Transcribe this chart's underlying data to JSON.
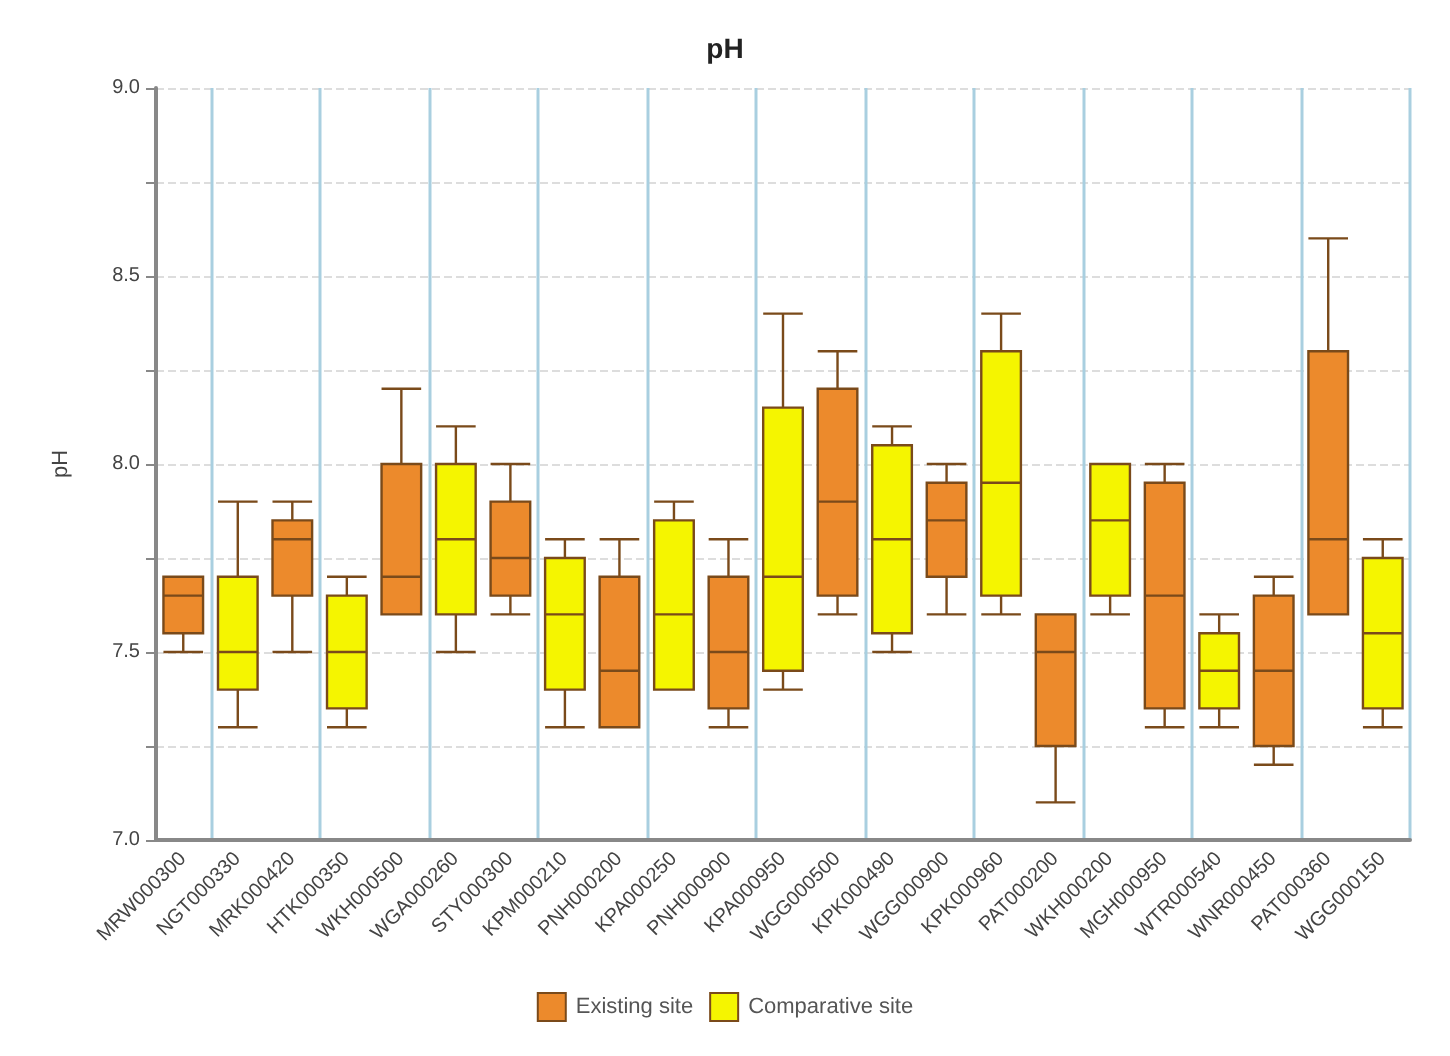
{
  "chart_data": {
    "type": "box",
    "title": "pH",
    "ylabel": "pH",
    "categories": [
      "MRW000300",
      "NGT000330",
      "MRK000420",
      "HTK000350",
      "WKH000500",
      "WGA000260",
      "STY000300",
      "KPM000210",
      "PNH000200",
      "KPA000250",
      "PNH000900",
      "KPA000950",
      "WGG000500",
      "KPK000490",
      "WGG000900",
      "KPK000960",
      "PAT000200",
      "WKH000200",
      "MGH000950",
      "WTR000540",
      "WNR000450",
      "PAT000360",
      "WGG000150"
    ],
    "series": [
      {
        "name": "Existing site",
        "color": "#ec8a2c",
        "boxes": [
          {
            "low": 7.5,
            "q1": 7.55,
            "median": 7.65,
            "q3": 7.7,
            "high": 7.7
          },
          null,
          {
            "low": 7.5,
            "q1": 7.65,
            "median": 7.8,
            "q3": 7.85,
            "high": 7.9
          },
          null,
          {
            "low": 7.6,
            "q1": 7.6,
            "median": 7.7,
            "q3": 8.0,
            "high": 8.2
          },
          null,
          {
            "low": 7.6,
            "q1": 7.65,
            "median": 7.75,
            "q3": 7.9,
            "high": 8.0
          },
          null,
          {
            "low": 7.3,
            "q1": 7.3,
            "median": 7.45,
            "q3": 7.7,
            "high": 7.8
          },
          null,
          {
            "low": 7.3,
            "q1": 7.35,
            "median": 7.5,
            "q3": 7.7,
            "high": 7.8
          },
          null,
          {
            "low": 7.6,
            "q1": 7.65,
            "median": 7.9,
            "q3": 8.2,
            "high": 8.3
          },
          null,
          {
            "low": 7.6,
            "q1": 7.7,
            "median": 7.85,
            "q3": 7.95,
            "high": 8.0
          },
          null,
          {
            "low": 7.1,
            "q1": 7.25,
            "median": 7.5,
            "q3": 7.6,
            "high": 7.6
          },
          null,
          {
            "low": 7.3,
            "q1": 7.35,
            "median": 7.65,
            "q3": 7.95,
            "high": 8.0
          },
          null,
          {
            "low": 7.2,
            "q1": 7.25,
            "median": 7.45,
            "q3": 7.65,
            "high": 7.7
          },
          {
            "low": 7.6,
            "q1": 7.6,
            "median": 7.8,
            "q3": 8.3,
            "high": 8.6
          },
          null
        ]
      },
      {
        "name": "Comparative site",
        "color": "#f5f500",
        "boxes": [
          null,
          {
            "low": 7.3,
            "q1": 7.4,
            "median": 7.5,
            "q3": 7.7,
            "high": 7.9
          },
          null,
          {
            "low": 7.3,
            "q1": 7.35,
            "median": 7.5,
            "q3": 7.65,
            "high": 7.7
          },
          null,
          {
            "low": 7.5,
            "q1": 7.6,
            "median": 7.8,
            "q3": 8.0,
            "high": 8.1
          },
          null,
          {
            "low": 7.3,
            "q1": 7.4,
            "median": 7.6,
            "q3": 7.75,
            "high": 7.8
          },
          null,
          {
            "low": 7.4,
            "q1": 7.4,
            "median": 7.6,
            "q3": 7.85,
            "high": 7.9
          },
          null,
          {
            "low": 7.4,
            "q1": 7.45,
            "median": 7.7,
            "q3": 8.15,
            "high": 8.4
          },
          null,
          {
            "low": 7.5,
            "q1": 7.55,
            "median": 7.8,
            "q3": 8.05,
            "high": 8.1
          },
          null,
          {
            "low": 7.6,
            "q1": 7.65,
            "median": 7.95,
            "q3": 8.3,
            "high": 8.4
          },
          null,
          {
            "low": 7.6,
            "q1": 7.65,
            "median": 7.85,
            "q3": 8.0,
            "high": 8.0
          },
          null,
          {
            "low": 7.3,
            "q1": 7.35,
            "median": 7.45,
            "q3": 7.55,
            "high": 7.6
          },
          null,
          null,
          {
            "low": 7.3,
            "q1": 7.35,
            "median": 7.55,
            "q3": 7.75,
            "high": 7.8
          }
        ]
      }
    ],
    "ylim": [
      7,
      9
    ],
    "yticks": [
      {
        "value": 7,
        "label": "7.0"
      },
      {
        "value": 7.25,
        "label": null
      },
      {
        "value": 7.5,
        "label": "7.5"
      },
      {
        "value": 7.75,
        "label": null
      },
      {
        "value": 8,
        "label": "8.0"
      },
      {
        "value": 8.25,
        "label": null
      },
      {
        "value": 8.5,
        "label": "8.5"
      },
      {
        "value": 8.75,
        "label": null
      },
      {
        "value": 9,
        "label": "9.0"
      }
    ],
    "grid": true,
    "legend": "bottom"
  }
}
